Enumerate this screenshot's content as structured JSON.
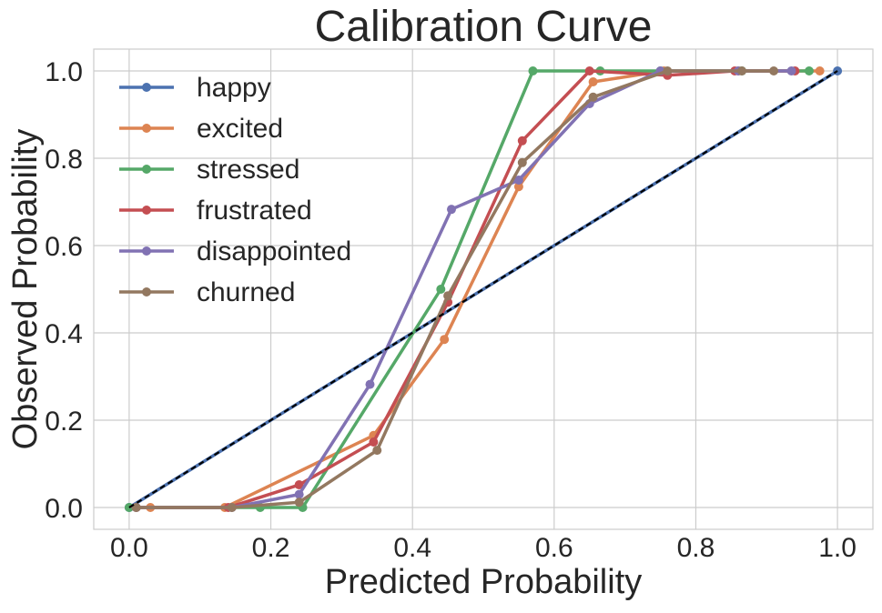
{
  "chart_data": {
    "type": "line",
    "title": "Calibration Curve",
    "xlabel": "Predicted Probability",
    "ylabel": "Observed Probability",
    "xlim": [
      -0.05,
      1.05
    ],
    "ylim": [
      -0.05,
      1.05
    ],
    "xticks": [
      "0.0",
      "0.2",
      "0.4",
      "0.6",
      "0.8",
      "1.0"
    ],
    "yticks": [
      "0.0",
      "0.2",
      "0.4",
      "0.6",
      "0.8",
      "1.0"
    ],
    "grid": true,
    "legend_position": "upper-left",
    "reference_line": {
      "x": [
        0,
        1
      ],
      "y": [
        0,
        1
      ],
      "style": "dashed",
      "color": "#000000"
    },
    "series": [
      {
        "name": "happy",
        "color": "#4c72b0",
        "x": [
          0.0,
          1.0
        ],
        "y": [
          0.0,
          1.0
        ]
      },
      {
        "name": "excited",
        "color": "#dd8452",
        "x": [
          0.03,
          0.135,
          0.345,
          0.445,
          0.55,
          0.655,
          0.755,
          0.86,
          0.975
        ],
        "y": [
          0.0,
          0.0,
          0.165,
          0.385,
          0.735,
          0.975,
          1.0,
          1.0,
          1.0
        ]
      },
      {
        "name": "stressed",
        "color": "#55a868",
        "x": [
          0.0,
          0.185,
          0.245,
          0.44,
          0.57,
          0.665,
          0.75,
          0.865,
          0.96
        ],
        "y": [
          0.0,
          0.0,
          0.0,
          0.5,
          1.0,
          1.0,
          1.0,
          1.0,
          1.0
        ]
      },
      {
        "name": "frustrated",
        "color": "#c44e52",
        "x": [
          0.01,
          0.14,
          0.24,
          0.345,
          0.45,
          0.555,
          0.65,
          0.76,
          0.855,
          0.94
        ],
        "y": [
          0.0,
          0.0,
          0.052,
          0.15,
          0.47,
          0.84,
          1.0,
          0.99,
          1.0,
          1.0
        ]
      },
      {
        "name": "disappointed",
        "color": "#8172b3",
        "x": [
          0.01,
          0.145,
          0.24,
          0.34,
          0.455,
          0.55,
          0.65,
          0.75,
          0.86,
          0.935
        ],
        "y": [
          0.0,
          0.0,
          0.03,
          0.282,
          0.683,
          0.75,
          0.925,
          1.0,
          1.0,
          1.0
        ]
      },
      {
        "name": "churned",
        "color": "#937860",
        "x": [
          0.01,
          0.145,
          0.24,
          0.35,
          0.45,
          0.555,
          0.655,
          0.76,
          0.865,
          0.91
        ],
        "y": [
          0.0,
          0.0,
          0.012,
          0.131,
          0.485,
          0.79,
          0.94,
          1.0,
          1.0,
          1.0
        ]
      }
    ]
  }
}
